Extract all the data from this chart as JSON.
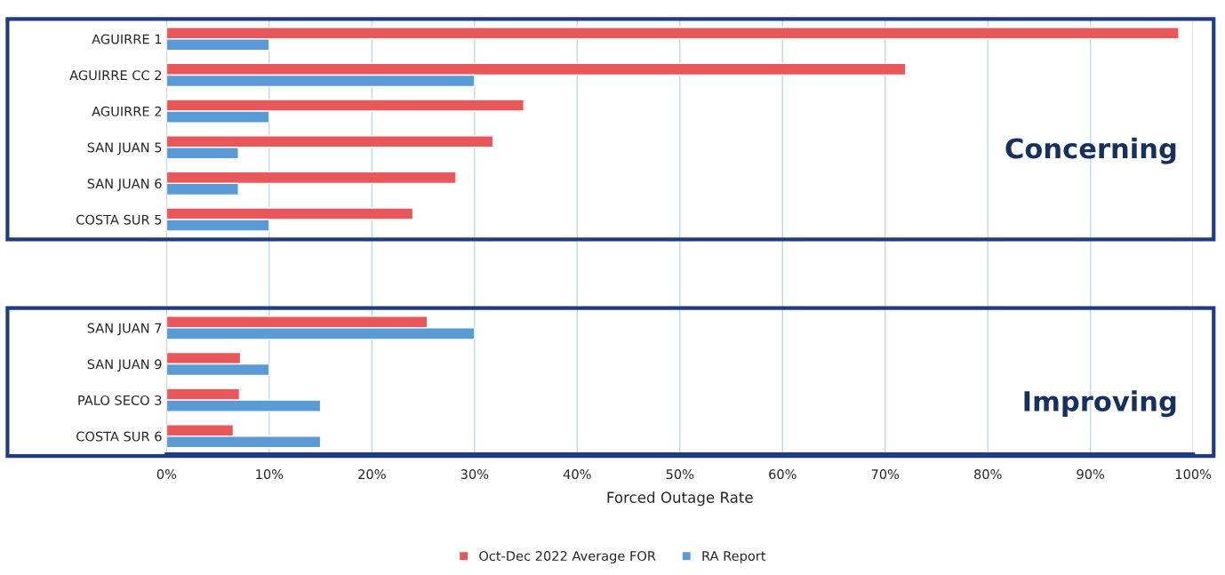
{
  "chart_data": {
    "type": "bar",
    "orientation": "horizontal",
    "xlabel": "Forced Outage Rate",
    "categories": [
      "AGUIRRE 1",
      "AGUIRRE CC 2",
      "AGUIRRE 2",
      "SAN JUAN 5",
      "SAN JUAN 6",
      "COSTA SUR 5",
      null,
      null,
      "SAN JUAN 7",
      "SAN JUAN 9",
      "PALO SECO 3",
      "COSTA SUR 6"
    ],
    "series": [
      {
        "name": "Oct-Dec 2022 Average FOR",
        "color": "#e8585a",
        "values": [
          98.6,
          72,
          34.8,
          31.8,
          28.2,
          24,
          null,
          null,
          25.4,
          7.2,
          7.1,
          6.5
        ]
      },
      {
        "name": "RA Report",
        "color": "#5b9bd5",
        "values": [
          10,
          30,
          10,
          7,
          7,
          10,
          null,
          null,
          30,
          10,
          15,
          15
        ]
      }
    ],
    "xlim": [
      0,
      100
    ],
    "xticks": [
      {
        "value": 0,
        "label": "0%"
      },
      {
        "value": 10,
        "label": "10%"
      },
      {
        "value": 20,
        "label": "20%"
      },
      {
        "value": 30,
        "label": "30%"
      },
      {
        "value": 40,
        "label": "40%"
      },
      {
        "value": 50,
        "label": "50%"
      },
      {
        "value": 60,
        "label": "60%"
      },
      {
        "value": 70,
        "label": "70%"
      },
      {
        "value": 80,
        "label": "80%"
      },
      {
        "value": 90,
        "label": "90%"
      },
      {
        "value": 100,
        "label": "100%"
      }
    ],
    "grid": "x",
    "legend": "bottom",
    "annotations": [
      "Concerning",
      "Improving"
    ]
  }
}
